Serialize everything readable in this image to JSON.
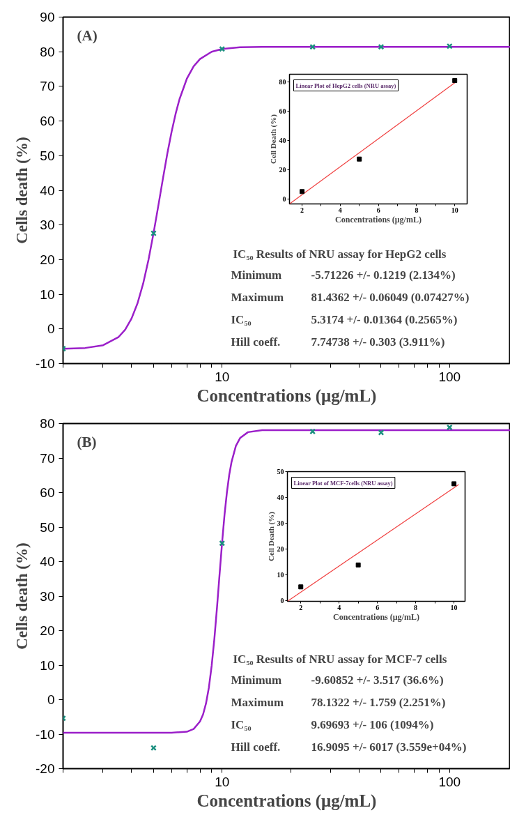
{
  "chart_data": [
    {
      "type": "scatter",
      "log": "x",
      "marker": "cross",
      "xlabel": "Concentrations (μg/mL)",
      "ylabel": "Cells death (%)",
      "xlim": [
        2,
        185
      ],
      "ylim": [
        -10,
        90
      ],
      "xticks": [
        {
          "value": 2,
          "label": null
        },
        {
          "value": 3,
          "label": null
        },
        {
          "value": 4,
          "label": null
        },
        {
          "value": 5,
          "label": null
        },
        {
          "value": 6,
          "label": null
        },
        {
          "value": 7,
          "label": null
        },
        {
          "value": 8,
          "label": null
        },
        {
          "value": 9,
          "label": null
        },
        10,
        {
          "value": 20,
          "label": null
        },
        {
          "value": 30,
          "label": null
        },
        {
          "value": 40,
          "label": null
        },
        {
          "value": 50,
          "label": null
        },
        {
          "value": 60,
          "label": null
        },
        {
          "value": 70,
          "label": null
        },
        {
          "value": 80,
          "label": null
        },
        {
          "value": 90,
          "label": null
        },
        100
      ],
      "yticks": [
        -10,
        0,
        10,
        20,
        30,
        40,
        50,
        60,
        70,
        80,
        90
      ],
      "x": [
        2,
        5,
        10,
        25,
        50,
        100
      ],
      "series": [
        {
          "type": "line",
          "marker": "none",
          "color": "#9b1fc9",
          "x": [
            2,
            2.5,
            3,
            3.5,
            3.75,
            4,
            4.25,
            4.5,
            4.75,
            5,
            5.25,
            5.5,
            5.75,
            6,
            6.25,
            6.5,
            7,
            7.5,
            8,
            9,
            10,
            12,
            15,
            20,
            185
          ],
          "values": [
            -5.7,
            -5.5,
            -4.7,
            -2.4,
            -0.2,
            3.0,
            7.4,
            13.1,
            20.0,
            27.7,
            35.7,
            43.5,
            50.7,
            56.9,
            62.1,
            66.3,
            72.2,
            75.8,
            77.9,
            80.0,
            80.8,
            81.3,
            81.4,
            81.4,
            81.4
          ]
        },
        {
          "color": "#1a8f7f",
          "values": [
            -5.7,
            27.6,
            80.8,
            81.4,
            81.4,
            81.6
          ]
        }
      ],
      "annotations": [
        "(A)",
        "IC₅₀ Results of NRU assay for HepG2 cells",
        "Minimum",
        "-5.71226 +/- 0.1219 (2.134%)",
        "Maximum",
        "81.4362 +/- 0.06049 (0.07427%)",
        "IC₅₀",
        "5.3174 +/- 0.01364 (0.2565%)",
        "Hill coeff.",
        "7.74738 +/- 0.303 (3.911%)"
      ]
    },
    {
      "type": "scatter",
      "marker": "square",
      "title": "Linear Plot of HepG2 cells (NRU assay)",
      "xlabel": "Concentrations (μg/mL)",
      "ylabel": "Cell Death (%)",
      "xlim": [
        1.34,
        10.65
      ],
      "ylim": [
        -3.2,
        85
      ],
      "xticks": [
        2,
        {
          "value": 3,
          "label": null
        },
        4,
        {
          "value": 5,
          "label": null
        },
        6,
        {
          "value": 7,
          "label": null
        },
        8,
        {
          "value": 9,
          "label": null
        },
        10
      ],
      "yticks": [
        0,
        20,
        40,
        60,
        80
      ],
      "x": [
        2,
        5,
        10
      ],
      "series": [
        {
          "type": "line",
          "marker": "none",
          "color": "#f04040",
          "x": [
            1.34,
            10
          ],
          "values": [
            -3.2,
            79.2
          ]
        },
        {
          "color": "#000000",
          "values": [
            5.2,
            27.3,
            80.7
          ]
        }
      ]
    },
    {
      "type": "scatter",
      "log": "x",
      "marker": "cross",
      "xlabel": "Concentrations (μg/mL)",
      "ylabel": "Cells death (%)",
      "xlim": [
        2,
        185
      ],
      "ylim": [
        -20,
        80
      ],
      "xticks": [
        {
          "value": 2,
          "label": null
        },
        {
          "value": 3,
          "label": null
        },
        {
          "value": 4,
          "label": null
        },
        {
          "value": 5,
          "label": null
        },
        {
          "value": 6,
          "label": null
        },
        {
          "value": 7,
          "label": null
        },
        {
          "value": 8,
          "label": null
        },
        {
          "value": 9,
          "label": null
        },
        10,
        {
          "value": 20,
          "label": null
        },
        {
          "value": 30,
          "label": null
        },
        {
          "value": 40,
          "label": null
        },
        {
          "value": 50,
          "label": null
        },
        {
          "value": 60,
          "label": null
        },
        {
          "value": 70,
          "label": null
        },
        {
          "value": 80,
          "label": null
        },
        {
          "value": 90,
          "label": null
        },
        100
      ],
      "yticks": [
        -20,
        -10,
        0,
        10,
        20,
        30,
        40,
        50,
        60,
        70,
        80
      ],
      "x": [
        2,
        5,
        10,
        25,
        50,
        100
      ],
      "series": [
        {
          "type": "line",
          "marker": "none",
          "color": "#9b1fc9",
          "x": [
            2,
            5,
            6,
            7,
            7.5,
            8,
            8.25,
            8.5,
            8.75,
            9,
            9.25,
            9.5,
            9.75,
            10,
            10.25,
            10.5,
            10.75,
            11,
            11.5,
            12,
            13,
            15,
            20,
            185
          ],
          "values": [
            -9.6,
            -9.6,
            -9.6,
            -9.3,
            -8.5,
            -6.3,
            -4.3,
            -1.1,
            3.5,
            9.8,
            17.6,
            26.7,
            36.3,
            45.4,
            53.5,
            60.0,
            65.1,
            68.8,
            73.5,
            75.8,
            77.5,
            78.1,
            78.1,
            78.1
          ]
        },
        {
          "color": "#1a8f7f",
          "values": [
            -5.4,
            -14.0,
            45.3,
            77.7,
            77.4,
            78.9
          ]
        }
      ],
      "annotations": [
        "(B)",
        "IC₅₀ Results of NRU assay for MCF-7 cells",
        "Minimum",
        "-9.60852 +/- 3.517 (36.6%)",
        "Maximum",
        "78.1322 +/- 1.759 (2.251%)",
        "IC₅₀",
        "9.69693 +/- 106 (1094%)",
        "Hill coeff.",
        "16.9095 +/- 6017 (3.559e+04%)"
      ]
    },
    {
      "type": "scatter",
      "marker": "square",
      "title": "Linear Plot of MCF-7cells (NRU assay)",
      "xlabel": "Concentrations (μg/mL)",
      "ylabel": "Cell Death (%)",
      "xlim": [
        1.3,
        10.58
      ],
      "ylim": [
        -0.3,
        50
      ],
      "xticks": [
        2,
        {
          "value": 3,
          "label": null
        },
        4,
        {
          "value": 5,
          "label": null
        },
        6,
        {
          "value": 7,
          "label": null
        },
        8,
        {
          "value": 9,
          "label": null
        },
        10
      ],
      "yticks": [
        0,
        10,
        20,
        30,
        40,
        50
      ],
      "x": [
        2,
        5,
        10
      ],
      "series": [
        {
          "type": "line",
          "marker": "none",
          "color": "#f04040",
          "x": [
            1.3,
            10.25
          ],
          "values": [
            -0.3,
            45.0
          ]
        },
        {
          "color": "#000000",
          "values": [
            5.3,
            13.8,
            45.3
          ]
        }
      ]
    }
  ]
}
